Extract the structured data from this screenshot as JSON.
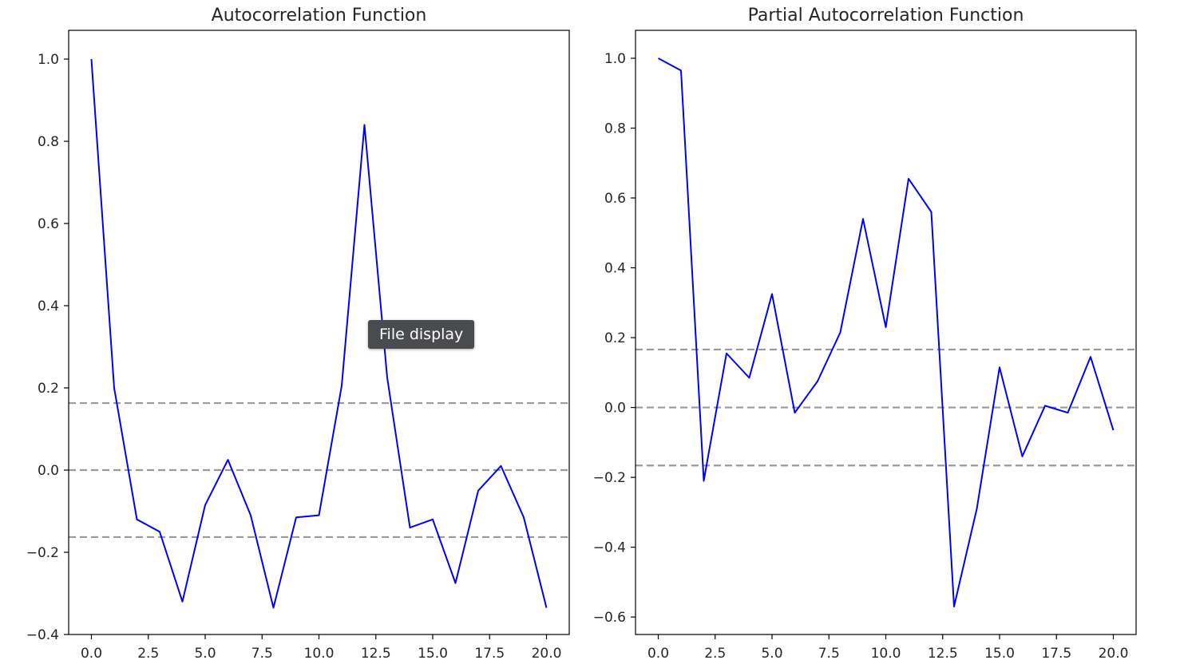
{
  "chart_data": [
    {
      "type": "line",
      "title": "Autocorrelation Function",
      "xlabel": "",
      "ylabel": "",
      "xlim": [
        -1,
        21
      ],
      "ylim": [
        -0.4,
        1.07
      ],
      "x_ticks": [
        0.0,
        2.5,
        5.0,
        7.5,
        10.0,
        12.5,
        15.0,
        17.5,
        20.0
      ],
      "x_tick_labels": [
        "0.0",
        "2.5",
        "5.0",
        "7.5",
        "10.0",
        "12.5",
        "15.0",
        "17.5",
        "20.0"
      ],
      "y_ticks": [
        -0.4,
        -0.2,
        0.0,
        0.2,
        0.4,
        0.6,
        0.8,
        1.0
      ],
      "y_tick_labels": [
        "−0.4",
        "−0.2",
        "0.0",
        "0.2",
        "0.4",
        "0.6",
        "0.8",
        "1.0"
      ],
      "grid": false,
      "series": [
        {
          "color": "#0000ff",
          "x": [
            0,
            1,
            2,
            3,
            4,
            5,
            6,
            7,
            8,
            9,
            10,
            11,
            12,
            13,
            14,
            15,
            16,
            17,
            18,
            19,
            20
          ],
          "values": [
            1.0,
            0.2,
            -0.12,
            -0.15,
            -0.32,
            -0.085,
            0.025,
            -0.11,
            -0.335,
            -0.115,
            -0.11,
            0.205,
            0.84,
            0.225,
            -0.14,
            -0.12,
            -0.275,
            -0.05,
            0.01,
            -0.115,
            -0.335
          ]
        }
      ],
      "reference_lines": [
        {
          "y": 0.163,
          "style": "dashed",
          "color": "#999999"
        },
        {
          "y": 0.0,
          "style": "dashed",
          "color": "#999999"
        },
        {
          "y": -0.163,
          "style": "dashed",
          "color": "#999999"
        }
      ]
    },
    {
      "type": "line",
      "title": "Partial Autocorrelation Function",
      "xlabel": "",
      "ylabel": "",
      "xlim": [
        -1,
        21
      ],
      "ylim": [
        -0.65,
        1.08
      ],
      "x_ticks": [
        0.0,
        2.5,
        5.0,
        7.5,
        10.0,
        12.5,
        15.0,
        17.5,
        20.0
      ],
      "x_tick_labels": [
        "0.0",
        "2.5",
        "5.0",
        "7.5",
        "10.0",
        "12.5",
        "15.0",
        "17.5",
        "20.0"
      ],
      "y_ticks": [
        -0.6,
        -0.4,
        -0.2,
        0.0,
        0.2,
        0.4,
        0.6,
        0.8,
        1.0
      ],
      "y_tick_labels": [
        "−0.6",
        "−0.4",
        "−0.2",
        "0.0",
        "0.2",
        "0.4",
        "0.6",
        "0.8",
        "1.0"
      ],
      "grid": false,
      "series": [
        {
          "color": "#0000ff",
          "x": [
            0,
            1,
            2,
            3,
            4,
            5,
            6,
            7,
            8,
            9,
            10,
            11,
            12,
            13,
            14,
            15,
            16,
            17,
            18,
            19,
            20
          ],
          "values": [
            1.0,
            0.965,
            -0.21,
            0.155,
            0.085,
            0.325,
            -0.015,
            0.075,
            0.215,
            0.54,
            0.23,
            0.655,
            0.56,
            -0.57,
            -0.29,
            0.115,
            -0.14,
            0.005,
            -0.015,
            0.145,
            -0.065
          ]
        }
      ],
      "reference_lines": [
        {
          "y": 0.166,
          "style": "dashed",
          "color": "#999999"
        },
        {
          "y": 0.0,
          "style": "dashed",
          "color": "#999999"
        },
        {
          "y": -0.166,
          "style": "dashed",
          "color": "#999999"
        }
      ]
    }
  ],
  "tooltip": {
    "text": "File display"
  }
}
